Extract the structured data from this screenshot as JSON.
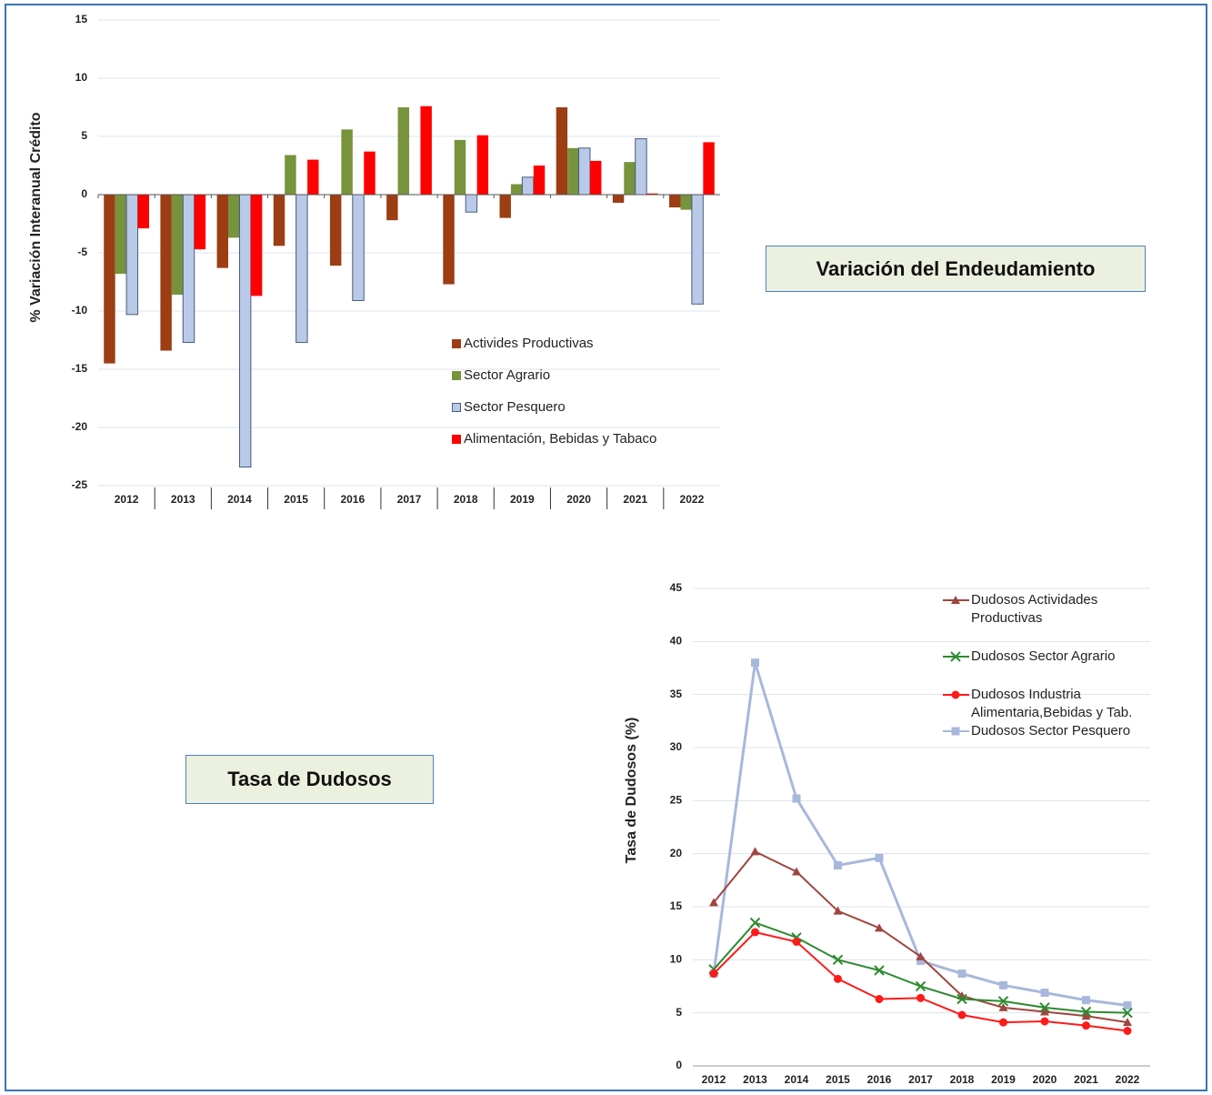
{
  "chart_data": [
    {
      "type": "bar",
      "y_label": "% Variación Interanual Crédito",
      "annotation": "Variación del Endeudamiento",
      "categories": [
        "2012",
        "2013",
        "2014",
        "2015",
        "2016",
        "2017",
        "2018",
        "2019",
        "2020",
        "2021",
        "2022"
      ],
      "series": [
        {
          "name": "Activides Productivas",
          "color": "#9c3d14",
          "values": [
            -14.5,
            -13.4,
            -6.3,
            -4.4,
            -6.1,
            -2.2,
            -7.7,
            -2.0,
            7.5,
            -0.7,
            -1.1
          ]
        },
        {
          "name": "Sector Agrario",
          "color": "#77933c",
          "values": [
            -6.8,
            -8.6,
            -3.7,
            3.4,
            5.6,
            7.5,
            4.7,
            0.9,
            4.0,
            2.8,
            -1.3
          ]
        },
        {
          "name": "Sector Pesquero",
          "color": "#b9c9e8",
          "values": [
            -10.3,
            -12.7,
            -23.4,
            -12.7,
            -9.1,
            0,
            -1.5,
            1.5,
            4.0,
            4.8,
            -9.4
          ]
        },
        {
          "name": "Alimentación, Bebidas y Tabaco",
          "color": "#ff0000",
          "values": [
            -2.9,
            -4.7,
            -8.7,
            3.0,
            3.7,
            7.6,
            5.1,
            2.5,
            2.9,
            0.1,
            4.5
          ]
        }
      ],
      "ylim": [
        -25,
        15
      ],
      "yticks": [
        -25,
        -20,
        -15,
        -10,
        -5,
        0,
        5,
        10,
        15
      ],
      "grid": true
    },
    {
      "type": "line",
      "y_label": "Tasa de Dudosos (%)",
      "annotation": "Tasa de Dudosos",
      "categories": [
        "2012",
        "2013",
        "2014",
        "2015",
        "2016",
        "2017",
        "2018",
        "2019",
        "2020",
        "2021",
        "2022"
      ],
      "series": [
        {
          "name": "Dudosos Actividades Productivas",
          "color": "#a0453f",
          "marker": "triangle",
          "values": [
            15.4,
            20.2,
            18.3,
            14.6,
            13.0,
            10.3,
            6.6,
            5.5,
            5.1,
            4.7,
            4.1
          ]
        },
        {
          "name": "Dudosos Sector Agrario",
          "color": "#2e8b30",
          "marker": "x",
          "values": [
            9.1,
            13.5,
            12.1,
            10.0,
            9.0,
            7.5,
            6.3,
            6.1,
            5.5,
            5.1,
            5.0
          ]
        },
        {
          "name": "Dudosos Industria Alimentaria,Bebidas y Tab.",
          "color": "#ff1a1a",
          "marker": "circle",
          "values": [
            8.7,
            12.6,
            11.7,
            8.2,
            6.3,
            6.4,
            4.8,
            4.1,
            4.2,
            3.8,
            3.3
          ]
        },
        {
          "name": "Dudosos Sector Pesquero",
          "color": "#a8b8dc",
          "marker": "square",
          "values": [
            8.7,
            38.0,
            25.2,
            18.9,
            19.6,
            9.9,
            8.7,
            7.6,
            6.9,
            6.2,
            5.7
          ]
        }
      ],
      "ylim": [
        0,
        45
      ],
      "yticks": [
        0,
        5,
        10,
        15,
        20,
        25,
        30,
        35,
        40,
        45
      ],
      "grid": true
    }
  ]
}
